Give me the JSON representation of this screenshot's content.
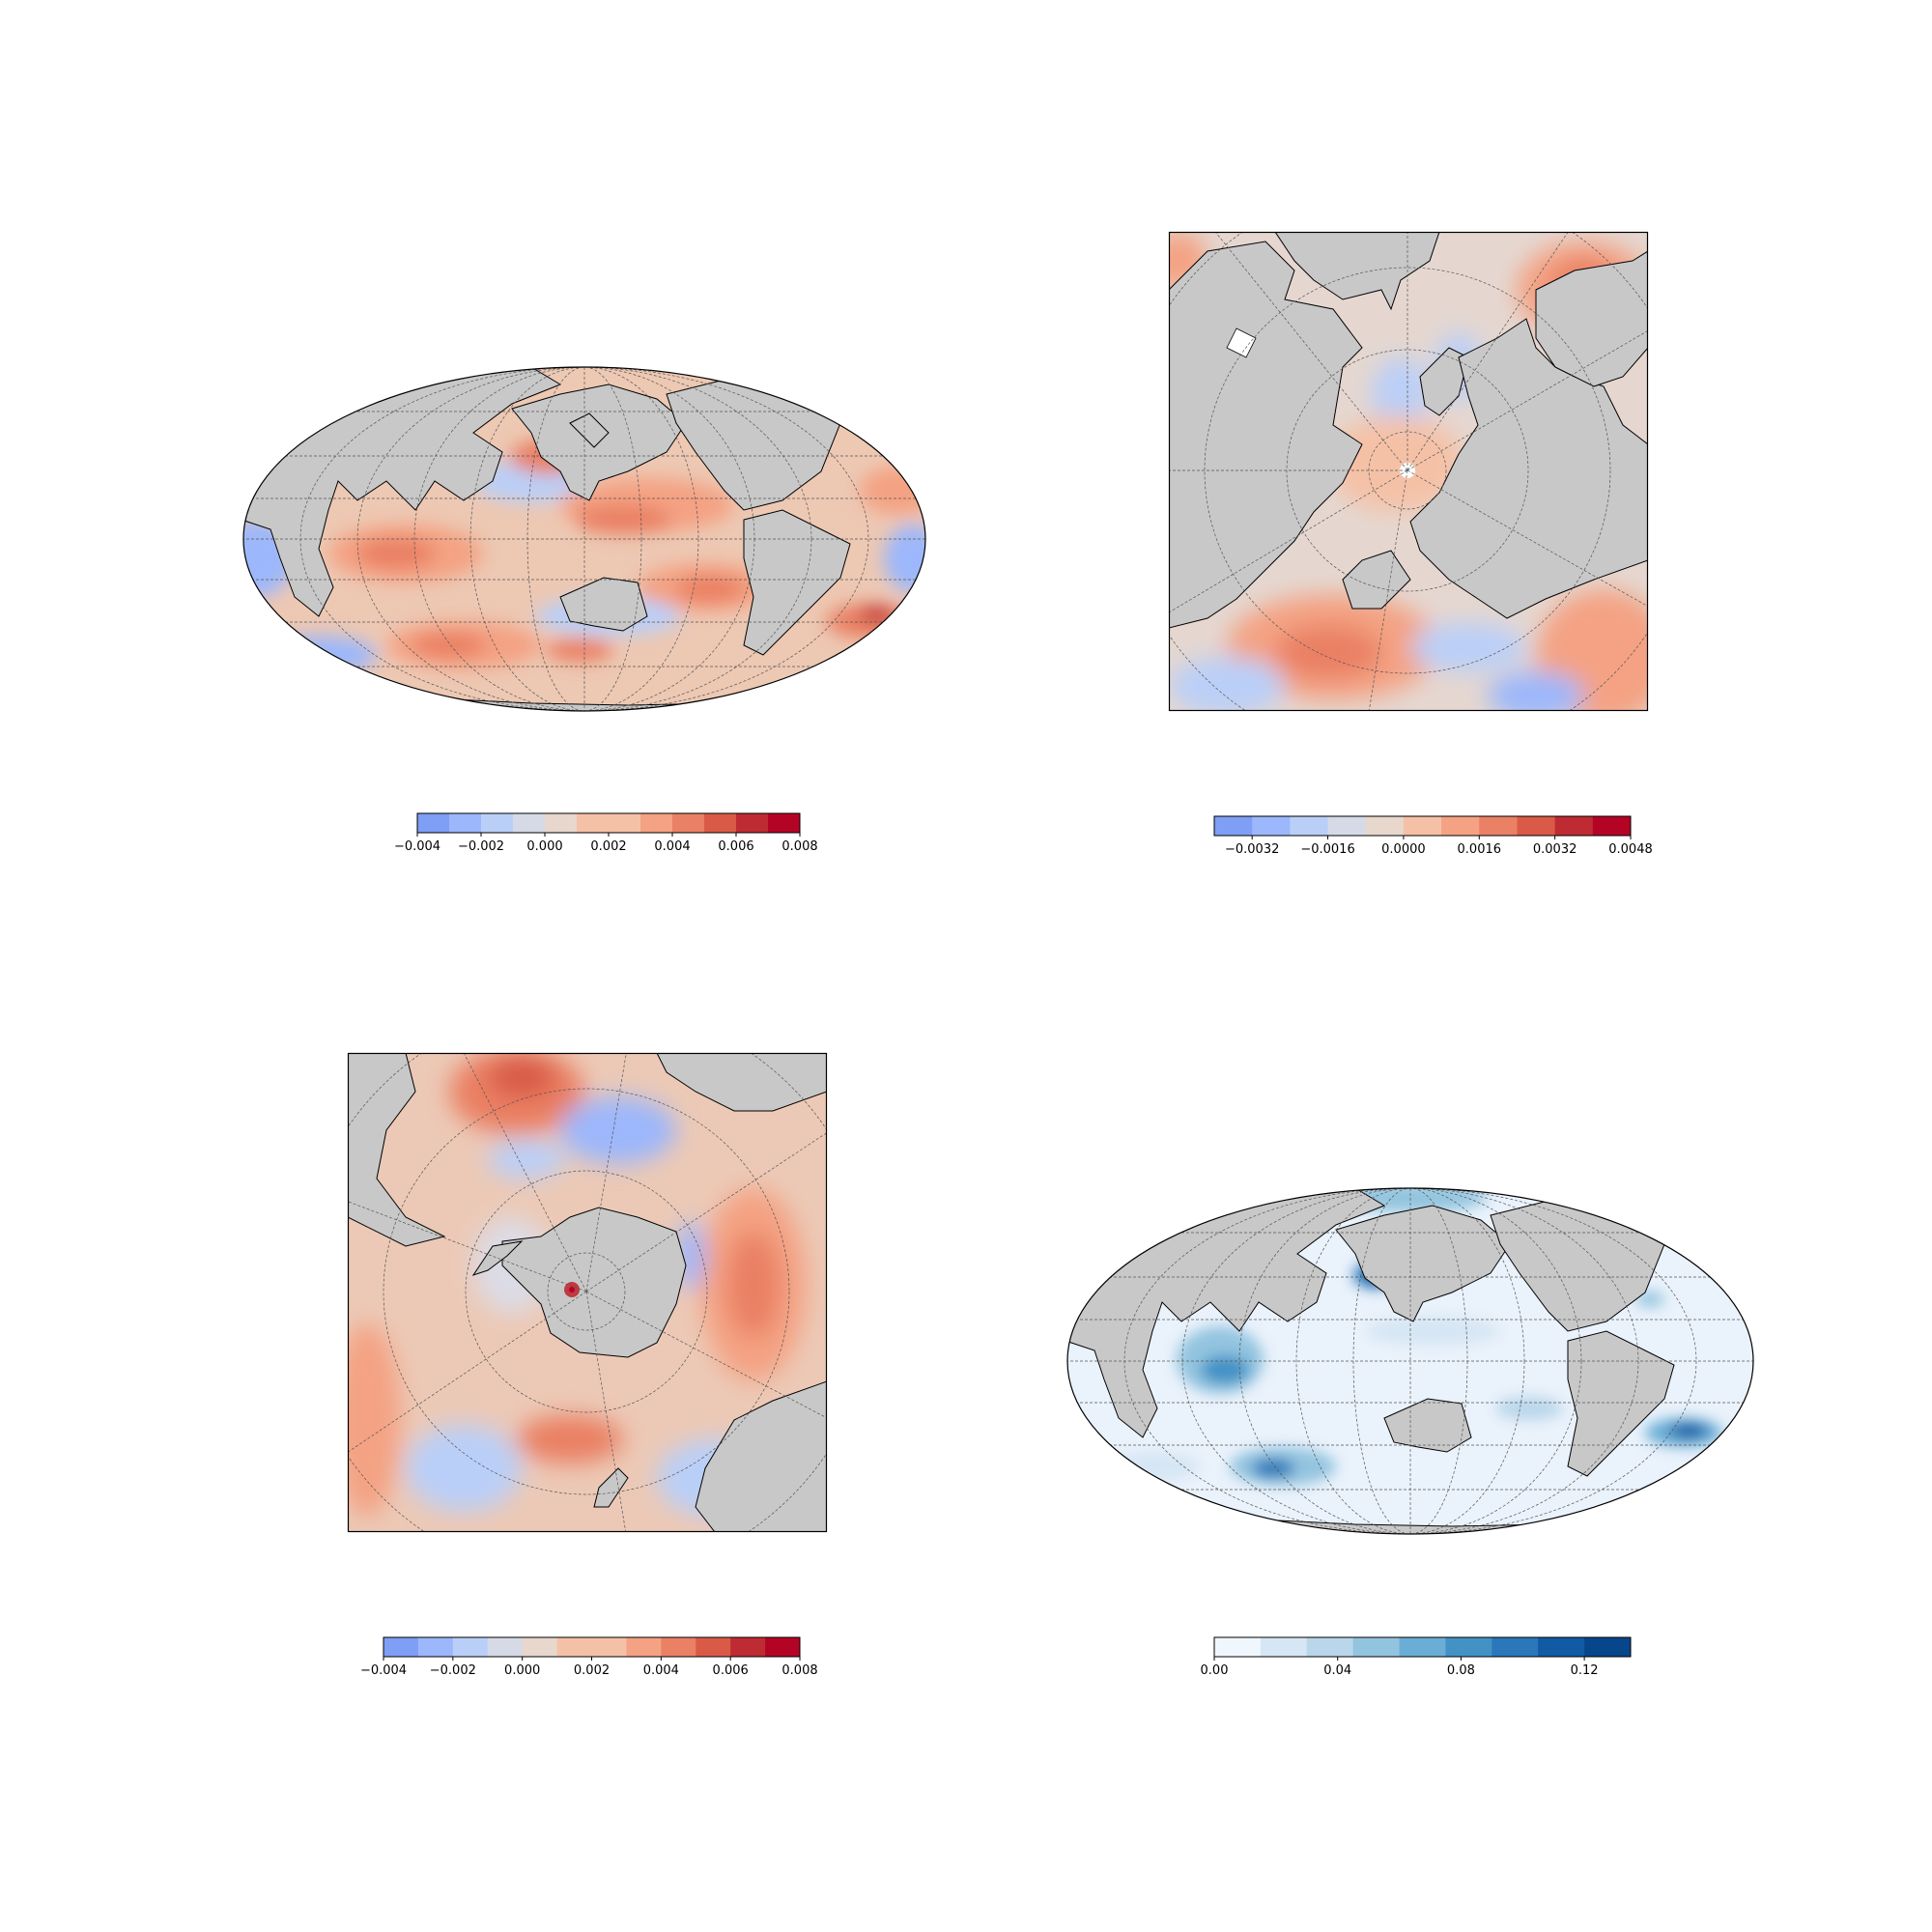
{
  "colors": {
    "land": "#c8c8c8",
    "coastline": "#000000",
    "gridline": "#555555",
    "diverging": [
      "#7f9ef5",
      "#9cb7fb",
      "#bacff8",
      "#d5dae6",
      "#e8d7cd",
      "#f5c1a6",
      "#f4a283",
      "#ea8064",
      "#d95b47",
      "#be2b32",
      "#b40426"
    ],
    "sequential": [
      "#f0f6fd",
      "#d6e6f4",
      "#b9d6ea",
      "#93c4df",
      "#6aaed6",
      "#4292c6",
      "#2a78b9",
      "#105ba4",
      "#08468b"
    ]
  },
  "maps": [
    {
      "id": "global-anomaly-map",
      "projection": "mollweide",
      "colormap": "coolwarm",
      "colorbar": {
        "min": -0.004,
        "max": 0.008,
        "ticks": [
          "−0.004",
          "−0.002",
          "0.000",
          "0.002",
          "0.004",
          "0.006",
          "0.008"
        ],
        "tick_values": [
          -0.004,
          -0.002,
          0,
          0.002,
          0.004,
          0.006,
          0.008
        ],
        "levels": [
          -0.004,
          -0.003,
          -0.002,
          -0.001,
          0,
          0.001,
          0.002,
          0.003,
          0.004,
          0.005,
          0.006,
          0.007,
          0.008
        ]
      }
    },
    {
      "id": "north-polar-anomaly-map",
      "projection": "north-polar-stereographic",
      "colormap": "coolwarm",
      "colorbar": {
        "min": -0.004,
        "max": 0.0048,
        "ticks": [
          "−0.0032",
          "−0.0016",
          "0.0000",
          "0.0016",
          "0.0032",
          "0.0048"
        ],
        "tick_values": [
          -0.0032,
          -0.0016,
          0,
          0.0016,
          0.0032,
          0.0048
        ],
        "levels": [
          -0.004,
          -0.0032,
          -0.0024,
          -0.0016,
          -0.0008,
          0,
          0.0008,
          0.0016,
          0.0024,
          0.0032,
          0.004,
          0.0048
        ]
      }
    },
    {
      "id": "south-polar-anomaly-map",
      "projection": "south-polar-stereographic",
      "colormap": "coolwarm",
      "colorbar": {
        "min": -0.004,
        "max": 0.008,
        "ticks": [
          "−0.004",
          "−0.002",
          "0.000",
          "0.002",
          "0.004",
          "0.006",
          "0.008"
        ],
        "tick_values": [
          -0.004,
          -0.002,
          0,
          0.002,
          0.004,
          0.006,
          0.008
        ],
        "levels": [
          -0.004,
          -0.003,
          -0.002,
          -0.001,
          0,
          0.001,
          0.002,
          0.003,
          0.004,
          0.005,
          0.006,
          0.007,
          0.008
        ]
      }
    },
    {
      "id": "global-spread-map",
      "projection": "mollweide",
      "colormap": "blues",
      "colorbar": {
        "min": 0.0,
        "max": 0.135,
        "ticks": [
          "0.00",
          "0.04",
          "0.08",
          "0.12"
        ],
        "tick_values": [
          0.0,
          0.04,
          0.08,
          0.12
        ],
        "levels": [
          0.0,
          0.015,
          0.03,
          0.045,
          0.06,
          0.075,
          0.09,
          0.105,
          0.12,
          0.135
        ]
      }
    }
  ]
}
